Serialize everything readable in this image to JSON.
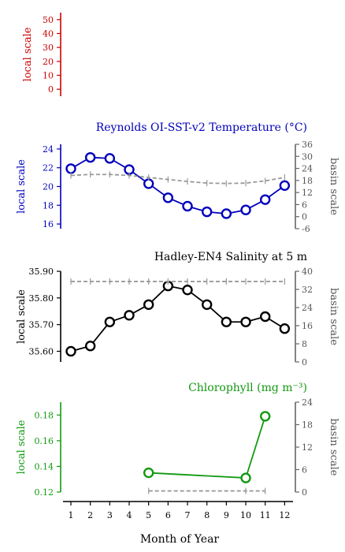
{
  "figure": {
    "xlabel": "Month of Year",
    "months": [
      1,
      2,
      3,
      4,
      5,
      6,
      7,
      8,
      9,
      10,
      11,
      12
    ]
  },
  "chart_data": [
    {
      "type": "line",
      "title": "",
      "ylabel": "local scale",
      "ylabel_right": "",
      "color": "#cc0000",
      "ylim": [
        -5,
        55
      ],
      "yticks": [
        0,
        10,
        20,
        30,
        40,
        50
      ],
      "series": []
    },
    {
      "type": "line",
      "title": "Reynolds OI-SST-v2 Temperature (°C)",
      "ylabel": "local scale",
      "ylabel_right": "basin scale",
      "color": "#0000bb",
      "x": [
        1,
        2,
        3,
        4,
        5,
        6,
        7,
        8,
        9,
        10,
        11,
        12
      ],
      "ylim": [
        15.5,
        24.5
      ],
      "yticks": [
        16,
        18,
        20,
        22,
        24
      ],
      "ylim_right": [
        -6,
        36
      ],
      "yticks_right": [
        -6,
        0,
        6,
        12,
        18,
        24,
        30,
        36
      ],
      "series": [
        {
          "axis": "left",
          "style": "solid-markers",
          "values": [
            21.9,
            23.1,
            23.0,
            21.8,
            20.3,
            18.8,
            17.9,
            17.3,
            17.1,
            17.5,
            18.6,
            20.1
          ]
        },
        {
          "axis": "right",
          "style": "dashed",
          "values": [
            20.5,
            21.0,
            21.0,
            20.5,
            19.5,
            18.5,
            17.5,
            16.7,
            16.5,
            16.7,
            17.8,
            19.5
          ]
        }
      ]
    },
    {
      "type": "line",
      "title": "Hadley-EN4 Salinity at 5 m",
      "ylabel": "local scale",
      "ylabel_right": "basin scale",
      "color": "#000000",
      "x": [
        1,
        2,
        3,
        4,
        5,
        6,
        7,
        8,
        9,
        10,
        11,
        12
      ],
      "ylim": [
        35.56,
        35.9
      ],
      "yticks": [
        "35.60",
        "35.70",
        "35.80",
        "35.90"
      ],
      "yticks_values": [
        35.6,
        35.7,
        35.8,
        35.9
      ],
      "ylim_right": [
        0,
        40
      ],
      "yticks_right": [
        0,
        8,
        16,
        24,
        32,
        40
      ],
      "series": [
        {
          "axis": "left",
          "style": "solid-markers",
          "values": [
            35.6,
            35.62,
            35.71,
            35.735,
            35.775,
            35.845,
            35.83,
            35.775,
            35.71,
            35.71,
            35.73,
            35.685
          ]
        },
        {
          "axis": "right",
          "style": "dashed",
          "values": [
            35.5,
            35.5,
            35.5,
            35.5,
            35.5,
            35.5,
            35.5,
            35.5,
            35.5,
            35.5,
            35.5,
            35.5
          ]
        }
      ]
    },
    {
      "type": "line",
      "title": "Chlorophyll (mg m⁻³)",
      "ylabel": "local scale",
      "ylabel_right": "basin scale",
      "color": "#119911",
      "x": [
        5,
        10,
        11
      ],
      "ylim": [
        0.12,
        0.19
      ],
      "yticks": [
        "0.12",
        "0.14",
        "0.16",
        "0.18"
      ],
      "yticks_values": [
        0.12,
        0.14,
        0.16,
        0.18
      ],
      "ylim_right": [
        0,
        24
      ],
      "yticks_right": [
        0,
        6,
        12,
        18,
        24
      ],
      "series": [
        {
          "axis": "left",
          "style": "solid-markers",
          "values": [
            0.135,
            0.131,
            0.179
          ]
        },
        {
          "axis": "right",
          "style": "dashed",
          "values": [
            0.3,
            0.3,
            0.3
          ]
        }
      ]
    }
  ]
}
